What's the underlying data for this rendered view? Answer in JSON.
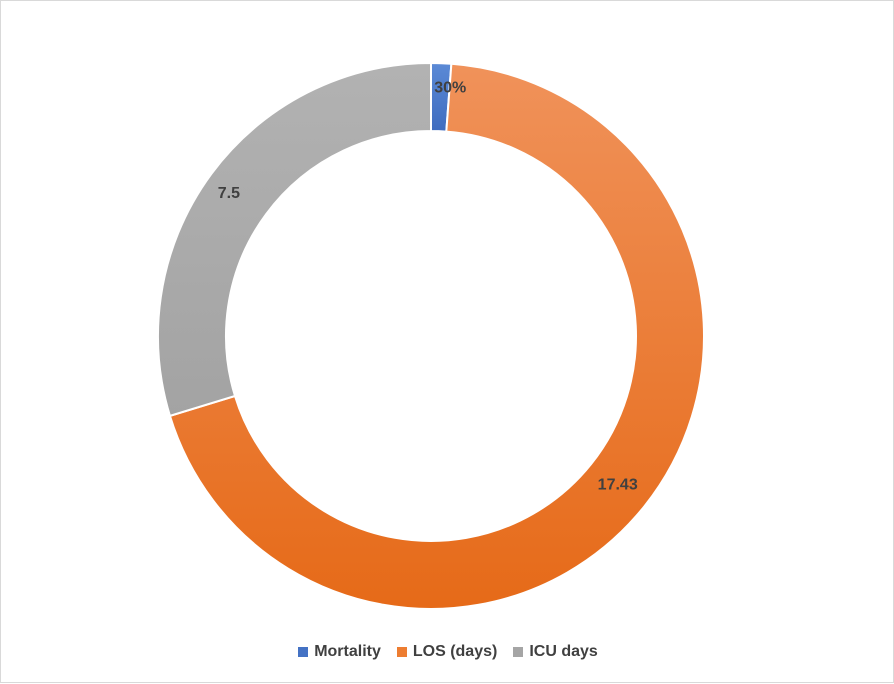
{
  "chart_data": {
    "type": "pie",
    "variant": "doughnut",
    "title": "",
    "legend_position": "bottom",
    "categories": [
      "Mortality",
      "LOS (days)",
      "ICU days"
    ],
    "values": [
      0.3,
      17.43,
      7.5
    ],
    "data_labels": [
      "30%",
      "17.43",
      "7.5"
    ],
    "colors": [
      "#4472c4",
      "#ed7d31",
      "#a5a5a5"
    ]
  }
}
